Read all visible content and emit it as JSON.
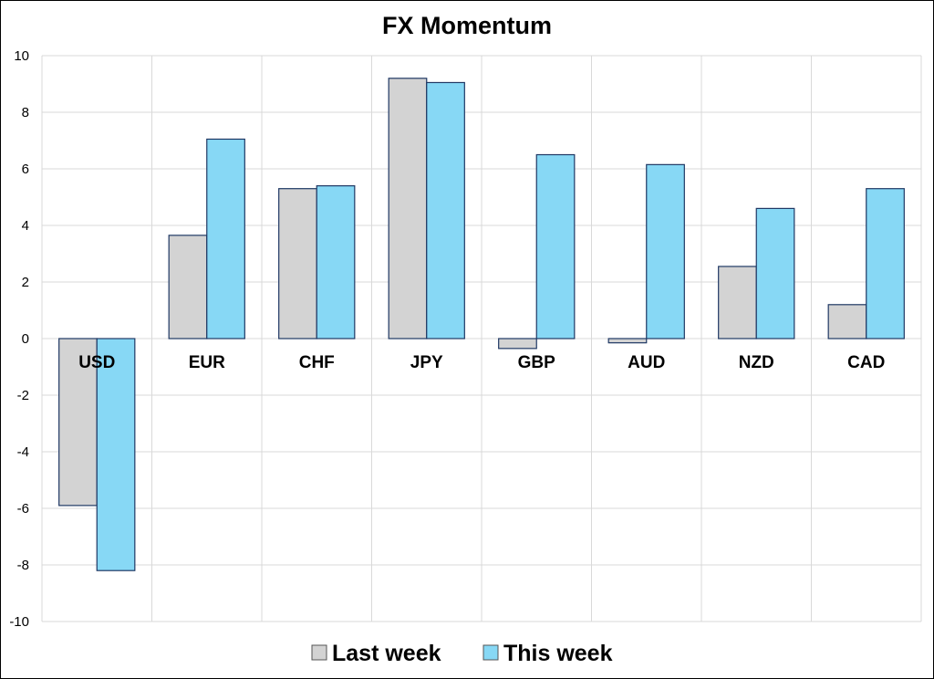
{
  "chart_data": {
    "type": "bar",
    "title": "FX Momentum",
    "xlabel": "",
    "ylabel": "",
    "categories": [
      "USD",
      "EUR",
      "CHF",
      "JPY",
      "GBP",
      "AUD",
      "NZD",
      "CAD"
    ],
    "series": [
      {
        "name": "Last week",
        "values": [
          -5.9,
          3.65,
          5.3,
          9.2,
          -0.35,
          -0.15,
          2.55,
          1.2
        ],
        "color": "#d3d3d3"
      },
      {
        "name": "This week",
        "values": [
          -8.2,
          7.05,
          5.4,
          9.05,
          6.5,
          6.15,
          4.6,
          5.3
        ],
        "color": "#87d8f5"
      }
    ],
    "ylim": [
      -10,
      10
    ],
    "yticks": [
      "10",
      "8",
      "6",
      "4",
      "2",
      "0",
      "-2",
      "-4",
      "-6",
      "-8",
      "-10"
    ],
    "grid": true,
    "legend": "bottom",
    "bar_outline_color": "#1f3864"
  }
}
